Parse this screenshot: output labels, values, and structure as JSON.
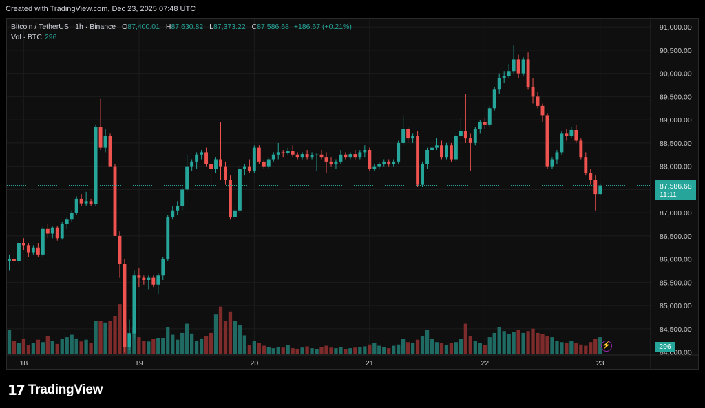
{
  "header": {
    "created_text": "Created with TradingView.com, Dec 23, 2025 07:48 UTC"
  },
  "legend": {
    "symbol": "Bitcoin / TetherUS · 1h · Binance",
    "o_label": "O",
    "o_value": "87,400.01",
    "h_label": "H",
    "h_value": "87,630.82",
    "l_label": "L",
    "l_value": "87,373.22",
    "c_label": "C",
    "c_value": "87,586.68",
    "change": "+186.67 (+0.21%)",
    "vol_label": "Vol · BTC",
    "vol_value": "296"
  },
  "last_price": {
    "price": "87,586.68",
    "countdown": "11:11"
  },
  "volume_tag": "296",
  "footer": {
    "brand": "TradingView",
    "logo_mark": "17"
  },
  "colors": {
    "up": "#26a69a",
    "down": "#ef5350",
    "up_vol": "#1f6b63",
    "down_vol": "#7d2b2b",
    "grid": "#1c1c1c",
    "price_line": "#26a69a"
  },
  "chart_data": {
    "type": "candlestick",
    "interval": "1h",
    "y_ticks": [
      "91,000.00",
      "90,500.00",
      "90,000.00",
      "89,500.00",
      "89,000.00",
      "88,500.00",
      "88,000.00",
      "87,500.00",
      "87,000.00",
      "86,500.00",
      "86,000.00",
      "85,500.00",
      "85,000.00",
      "84,500.00",
      "84,000.00"
    ],
    "y_tick_values": [
      91000,
      90500,
      90000,
      89500,
      89000,
      88500,
      88000,
      87500,
      87000,
      86500,
      86000,
      85500,
      85000,
      84500,
      84000
    ],
    "ylim": [
      83950,
      91180
    ],
    "x_ticks": [
      {
        "label": "18",
        "index": 3
      },
      {
        "label": "19",
        "index": 27
      },
      {
        "label": "20",
        "index": 51
      },
      {
        "label": "21",
        "index": 75
      },
      {
        "label": "22",
        "index": 99
      },
      {
        "label": "23",
        "index": 123
      }
    ],
    "bar_count": 134,
    "candles": [
      {
        "o": 85950,
        "h": 86100,
        "l": 85750,
        "c": 86010
      },
      {
        "o": 86010,
        "h": 86200,
        "l": 85850,
        "c": 85950
      },
      {
        "o": 85950,
        "h": 86400,
        "l": 85900,
        "c": 86350
      },
      {
        "o": 86350,
        "h": 86450,
        "l": 86200,
        "c": 86300
      },
      {
        "o": 86300,
        "h": 86350,
        "l": 86050,
        "c": 86150
      },
      {
        "o": 86150,
        "h": 86300,
        "l": 86100,
        "c": 86250
      },
      {
        "o": 86250,
        "h": 86350,
        "l": 86050,
        "c": 86100
      },
      {
        "o": 86100,
        "h": 86700,
        "l": 86050,
        "c": 86650
      },
      {
        "o": 86650,
        "h": 86750,
        "l": 86450,
        "c": 86550
      },
      {
        "o": 86550,
        "h": 86700,
        "l": 86450,
        "c": 86680
      },
      {
        "o": 86680,
        "h": 86720,
        "l": 86400,
        "c": 86450
      },
      {
        "o": 86450,
        "h": 86800,
        "l": 86420,
        "c": 86750
      },
      {
        "o": 86750,
        "h": 86900,
        "l": 86650,
        "c": 86850
      },
      {
        "o": 86850,
        "h": 87050,
        "l": 86800,
        "c": 87000
      },
      {
        "o": 87000,
        "h": 87350,
        "l": 86950,
        "c": 87300
      },
      {
        "o": 87300,
        "h": 87400,
        "l": 87150,
        "c": 87200
      },
      {
        "o": 87200,
        "h": 87450,
        "l": 87150,
        "c": 87250
      },
      {
        "o": 87250,
        "h": 87300,
        "l": 87150,
        "c": 87180
      },
      {
        "o": 87180,
        "h": 88900,
        "l": 87150,
        "c": 88850
      },
      {
        "o": 88850,
        "h": 89450,
        "l": 88350,
        "c": 88400
      },
      {
        "o": 88400,
        "h": 88800,
        "l": 88300,
        "c": 88650
      },
      {
        "o": 88650,
        "h": 88700,
        "l": 88000,
        "c": 88000
      },
      {
        "o": 88000,
        "h": 88050,
        "l": 86500,
        "c": 86500
      },
      {
        "o": 86500,
        "h": 86600,
        "l": 85600,
        "c": 85900
      },
      {
        "o": 85900,
        "h": 86000,
        "l": 84000,
        "c": 84100
      },
      {
        "o": 84100,
        "h": 84700,
        "l": 84050,
        "c": 84400
      },
      {
        "o": 84400,
        "h": 85750,
        "l": 84300,
        "c": 85650
      },
      {
        "o": 85650,
        "h": 85800,
        "l": 85400,
        "c": 85600
      },
      {
        "o": 85600,
        "h": 85650,
        "l": 85450,
        "c": 85550
      },
      {
        "o": 85550,
        "h": 85650,
        "l": 85350,
        "c": 85600
      },
      {
        "o": 85600,
        "h": 85650,
        "l": 85400,
        "c": 85450
      },
      {
        "o": 85450,
        "h": 85700,
        "l": 85250,
        "c": 85650
      },
      {
        "o": 85650,
        "h": 86050,
        "l": 85550,
        "c": 86000
      },
      {
        "o": 86000,
        "h": 86950,
        "l": 85950,
        "c": 86900
      },
      {
        "o": 86900,
        "h": 87150,
        "l": 86850,
        "c": 87050
      },
      {
        "o": 87050,
        "h": 87250,
        "l": 86950,
        "c": 87150
      },
      {
        "o": 87150,
        "h": 87550,
        "l": 87050,
        "c": 87500
      },
      {
        "o": 87500,
        "h": 88250,
        "l": 87450,
        "c": 88000
      },
      {
        "o": 88000,
        "h": 88150,
        "l": 87900,
        "c": 88100
      },
      {
        "o": 88100,
        "h": 88300,
        "l": 87950,
        "c": 88250
      },
      {
        "o": 88250,
        "h": 88350,
        "l": 88150,
        "c": 88300
      },
      {
        "o": 88300,
        "h": 88400,
        "l": 88000,
        "c": 88050
      },
      {
        "o": 88050,
        "h": 88100,
        "l": 87600,
        "c": 87950
      },
      {
        "o": 87950,
        "h": 88200,
        "l": 87850,
        "c": 88150
      },
      {
        "o": 88150,
        "h": 88950,
        "l": 87700,
        "c": 88000
      },
      {
        "o": 88000,
        "h": 88100,
        "l": 87600,
        "c": 87700
      },
      {
        "o": 87700,
        "h": 87800,
        "l": 86850,
        "c": 86900
      },
      {
        "o": 86900,
        "h": 87150,
        "l": 86850,
        "c": 87050
      },
      {
        "o": 87050,
        "h": 88000,
        "l": 87000,
        "c": 87950
      },
      {
        "o": 87950,
        "h": 88050,
        "l": 87800,
        "c": 88000
      },
      {
        "o": 88000,
        "h": 88150,
        "l": 87850,
        "c": 87900
      },
      {
        "o": 87900,
        "h": 88450,
        "l": 87850,
        "c": 88400
      },
      {
        "o": 88400,
        "h": 88450,
        "l": 88050,
        "c": 88100
      },
      {
        "o": 88100,
        "h": 88150,
        "l": 87950,
        "c": 88000
      },
      {
        "o": 88000,
        "h": 88200,
        "l": 87950,
        "c": 88150
      },
      {
        "o": 88150,
        "h": 88300,
        "l": 88100,
        "c": 88250
      },
      {
        "o": 88250,
        "h": 88500,
        "l": 88150,
        "c": 88300
      },
      {
        "o": 88300,
        "h": 88350,
        "l": 88200,
        "c": 88280
      },
      {
        "o": 88280,
        "h": 88400,
        "l": 88250,
        "c": 88320
      },
      {
        "o": 88320,
        "h": 88450,
        "l": 88200,
        "c": 88250
      },
      {
        "o": 88250,
        "h": 88300,
        "l": 88150,
        "c": 88200
      },
      {
        "o": 88200,
        "h": 88300,
        "l": 88150,
        "c": 88260
      },
      {
        "o": 88260,
        "h": 88350,
        "l": 88150,
        "c": 88200
      },
      {
        "o": 88200,
        "h": 88300,
        "l": 88150,
        "c": 88240
      },
      {
        "o": 88240,
        "h": 88280,
        "l": 87900,
        "c": 88250
      },
      {
        "o": 88250,
        "h": 88350,
        "l": 88150,
        "c": 88200
      },
      {
        "o": 88200,
        "h": 88300,
        "l": 87850,
        "c": 88100
      },
      {
        "o": 88100,
        "h": 88200,
        "l": 88000,
        "c": 88050
      },
      {
        "o": 88050,
        "h": 88150,
        "l": 87950,
        "c": 88100
      },
      {
        "o": 88100,
        "h": 88350,
        "l": 88050,
        "c": 88250
      },
      {
        "o": 88250,
        "h": 88300,
        "l": 88150,
        "c": 88200
      },
      {
        "o": 88200,
        "h": 88300,
        "l": 88150,
        "c": 88260
      },
      {
        "o": 88260,
        "h": 88350,
        "l": 88150,
        "c": 88200
      },
      {
        "o": 88200,
        "h": 88350,
        "l": 88150,
        "c": 88300
      },
      {
        "o": 88300,
        "h": 88450,
        "l": 88200,
        "c": 88350
      },
      {
        "o": 88350,
        "h": 88400,
        "l": 87900,
        "c": 87950
      },
      {
        "o": 87950,
        "h": 88050,
        "l": 87900,
        "c": 88000
      },
      {
        "o": 88000,
        "h": 88100,
        "l": 87950,
        "c": 88050
      },
      {
        "o": 88050,
        "h": 88150,
        "l": 88000,
        "c": 88100
      },
      {
        "o": 88100,
        "h": 88150,
        "l": 88000,
        "c": 88050
      },
      {
        "o": 88050,
        "h": 88150,
        "l": 88000,
        "c": 88100
      },
      {
        "o": 88100,
        "h": 88550,
        "l": 88050,
        "c": 88500
      },
      {
        "o": 88500,
        "h": 89100,
        "l": 88450,
        "c": 88800
      },
      {
        "o": 88800,
        "h": 88850,
        "l": 88500,
        "c": 88600
      },
      {
        "o": 88600,
        "h": 88700,
        "l": 88500,
        "c": 88650
      },
      {
        "o": 88650,
        "h": 88750,
        "l": 87550,
        "c": 87600
      },
      {
        "o": 87600,
        "h": 88100,
        "l": 87550,
        "c": 88050
      },
      {
        "o": 88050,
        "h": 88400,
        "l": 87950,
        "c": 88350
      },
      {
        "o": 88350,
        "h": 88450,
        "l": 88300,
        "c": 88400
      },
      {
        "o": 88400,
        "h": 88600,
        "l": 88350,
        "c": 88450
      },
      {
        "o": 88450,
        "h": 88550,
        "l": 88150,
        "c": 88200
      },
      {
        "o": 88200,
        "h": 88500,
        "l": 88150,
        "c": 88450
      },
      {
        "o": 88450,
        "h": 88500,
        "l": 88100,
        "c": 88150
      },
      {
        "o": 88150,
        "h": 88700,
        "l": 88100,
        "c": 88650
      },
      {
        "o": 88650,
        "h": 89050,
        "l": 88600,
        "c": 88750
      },
      {
        "o": 88750,
        "h": 89550,
        "l": 88500,
        "c": 88600
      },
      {
        "o": 88600,
        "h": 88700,
        "l": 87900,
        "c": 88500
      },
      {
        "o": 88500,
        "h": 88850,
        "l": 88450,
        "c": 88800
      },
      {
        "o": 88800,
        "h": 89000,
        "l": 88700,
        "c": 88950
      },
      {
        "o": 88950,
        "h": 89050,
        "l": 88800,
        "c": 88900
      },
      {
        "o": 88900,
        "h": 89300,
        "l": 88850,
        "c": 89250
      },
      {
        "o": 89250,
        "h": 89700,
        "l": 89200,
        "c": 89650
      },
      {
        "o": 89650,
        "h": 90000,
        "l": 89550,
        "c": 89900
      },
      {
        "o": 89900,
        "h": 90050,
        "l": 89800,
        "c": 89950
      },
      {
        "o": 89950,
        "h": 90200,
        "l": 89900,
        "c": 90050
      },
      {
        "o": 90050,
        "h": 90600,
        "l": 90000,
        "c": 90300
      },
      {
        "o": 90300,
        "h": 90400,
        "l": 89900,
        "c": 90000
      },
      {
        "o": 90000,
        "h": 90350,
        "l": 89950,
        "c": 90300
      },
      {
        "o": 90300,
        "h": 90450,
        "l": 89650,
        "c": 89700
      },
      {
        "o": 89700,
        "h": 89900,
        "l": 89350,
        "c": 89500
      },
      {
        "o": 89500,
        "h": 89600,
        "l": 89250,
        "c": 89300
      },
      {
        "o": 89300,
        "h": 89350,
        "l": 88950,
        "c": 89100
      },
      {
        "o": 89100,
        "h": 89150,
        "l": 87950,
        "c": 88000
      },
      {
        "o": 88000,
        "h": 88200,
        "l": 87950,
        "c": 88150
      },
      {
        "o": 88150,
        "h": 88350,
        "l": 88050,
        "c": 88300
      },
      {
        "o": 88300,
        "h": 88750,
        "l": 88250,
        "c": 88700
      },
      {
        "o": 88700,
        "h": 88800,
        "l": 88550,
        "c": 88650
      },
      {
        "o": 88650,
        "h": 88850,
        "l": 88600,
        "c": 88780
      },
      {
        "o": 88780,
        "h": 88900,
        "l": 88500,
        "c": 88550
      },
      {
        "o": 88550,
        "h": 88600,
        "l": 88150,
        "c": 88200
      },
      {
        "o": 88200,
        "h": 88300,
        "l": 87800,
        "c": 87850
      },
      {
        "o": 87850,
        "h": 87950,
        "l": 87600,
        "c": 87700
      },
      {
        "o": 87700,
        "h": 87800,
        "l": 87050,
        "c": 87400
      },
      {
        "o": 87400,
        "h": 87630,
        "l": 87370,
        "c": 87587
      }
    ],
    "volumes": [
      40,
      22,
      18,
      26,
      15,
      18,
      24,
      20,
      30,
      22,
      17,
      25,
      28,
      32,
      26,
      21,
      24,
      19,
      55,
      55,
      52,
      54,
      62,
      82,
      50,
      35,
      45,
      28,
      22,
      21,
      25,
      27,
      27,
      45,
      32,
      24,
      35,
      50,
      34,
      22,
      26,
      30,
      35,
      65,
      78,
      55,
      70,
      55,
      48,
      31,
      15,
      22,
      18,
      14,
      12,
      10,
      12,
      11,
      15,
      10,
      9,
      11,
      13,
      10,
      9,
      12,
      14,
      11,
      10,
      12,
      9,
      10,
      11,
      12,
      13,
      16,
      18,
      14,
      12,
      10,
      14,
      16,
      25,
      20,
      18,
      24,
      30,
      40,
      25,
      20,
      18,
      15,
      18,
      20,
      25,
      50,
      30,
      22,
      18,
      15,
      28,
      35,
      45,
      38,
      33,
      36,
      40,
      35,
      38,
      42,
      35,
      33,
      30,
      28,
      22,
      20,
      18,
      22,
      18,
      16,
      14,
      20,
      25,
      28
    ]
  }
}
